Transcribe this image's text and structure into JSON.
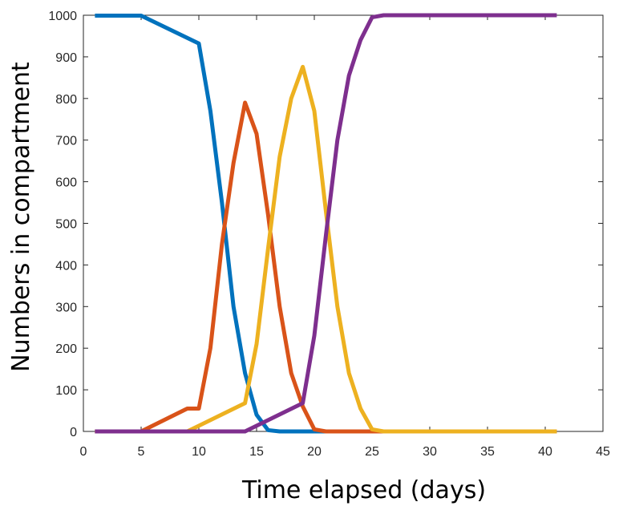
{
  "chart_data": {
    "type": "line",
    "title": "",
    "xlabel": "Time elapsed (days)",
    "ylabel": "Numbers in compartment",
    "xlim": [
      0,
      45
    ],
    "ylim": [
      0,
      1000
    ],
    "xticks": [
      0,
      5,
      10,
      15,
      20,
      25,
      30,
      35,
      40,
      45
    ],
    "yticks": [
      0,
      100,
      200,
      300,
      400,
      500,
      600,
      700,
      800,
      900,
      1000
    ],
    "grid": false,
    "legend": "none",
    "series": [
      {
        "color": "#0072BD",
        "points": [
          [
            1,
            999
          ],
          [
            5,
            999
          ],
          [
            10,
            932
          ],
          [
            11,
            770
          ],
          [
            12,
            550
          ],
          [
            13,
            300
          ],
          [
            14,
            140
          ],
          [
            15,
            40
          ],
          [
            16,
            3
          ],
          [
            17,
            0
          ],
          [
            41,
            0
          ]
        ]
      },
      {
        "color": "#D95319",
        "points": [
          [
            1,
            0
          ],
          [
            5,
            0
          ],
          [
            9,
            55
          ],
          [
            10,
            55
          ],
          [
            11,
            200
          ],
          [
            12,
            450
          ],
          [
            13,
            645
          ],
          [
            14,
            790
          ],
          [
            15,
            715
          ],
          [
            16,
            520
          ],
          [
            17,
            300
          ],
          [
            18,
            140
          ],
          [
            19,
            60
          ],
          [
            20,
            5
          ],
          [
            21,
            0
          ],
          [
            41,
            0
          ]
        ]
      },
      {
        "color": "#EDB120",
        "points": [
          [
            1,
            0
          ],
          [
            9,
            0
          ],
          [
            14,
            68
          ],
          [
            15,
            210
          ],
          [
            16,
            440
          ],
          [
            17,
            660
          ],
          [
            18,
            800
          ],
          [
            19,
            876
          ],
          [
            20,
            770
          ],
          [
            21,
            530
          ],
          [
            22,
            300
          ],
          [
            23,
            140
          ],
          [
            24,
            55
          ],
          [
            25,
            5
          ],
          [
            26,
            0
          ],
          [
            41,
            0
          ]
        ]
      },
      {
        "color": "#7E2F8E",
        "points": [
          [
            1,
            0
          ],
          [
            14,
            0
          ],
          [
            19,
            68
          ],
          [
            20,
            230
          ],
          [
            21,
            470
          ],
          [
            22,
            700
          ],
          [
            23,
            855
          ],
          [
            24,
            940
          ],
          [
            25,
            995
          ],
          [
            26,
            1000
          ],
          [
            41,
            1000
          ]
        ]
      }
    ]
  }
}
